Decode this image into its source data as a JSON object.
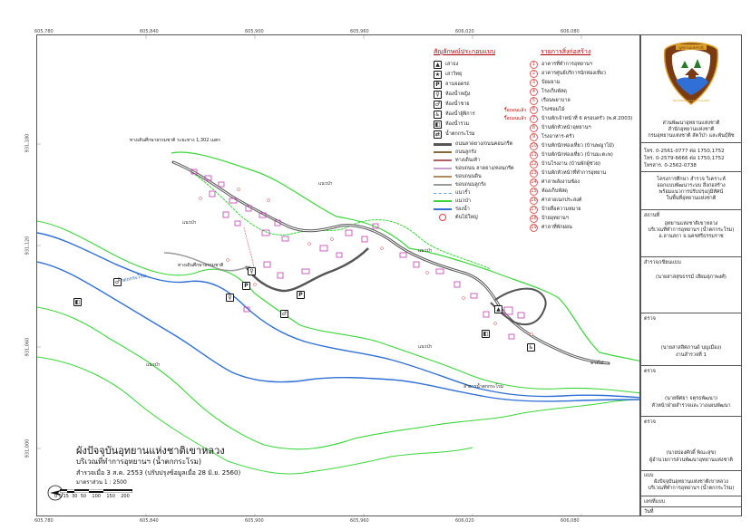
{
  "map": {
    "title": "ผังปัจจุบันอุทยานแห่งชาติเขาหลวง",
    "subtitle": "บริเวณที่ทำการอุทยานฯ (น้ำตกกระโรม)",
    "survey_date": "สำรวจเมื่อ 3 ส.ค. 2553 (ปรับปรุงข้อมูลเมื่อ 28 มิ.ย. 2560)",
    "scale_text": "มาตราส่วน        1 : 2500",
    "scale_ticks": [
      "0",
      "5",
      "15",
      "30",
      "50",
      "100",
      "150",
      "200"
    ],
    "grid_x_labels": [
      "605,780",
      "605,840",
      "605,900",
      "605,960",
      "606,020",
      "606,080",
      "606,140"
    ],
    "grid_y_labels": [
      "931,180",
      "931,120",
      "931,060",
      "931,000",
      "930,940"
    ],
    "labels": {
      "forest_1": "แนวป่า",
      "forest_2": "แนวป่า",
      "forest_3": "แนวป่า",
      "forest_4": "แนวป่า",
      "forest_5": "แนวป่า",
      "river": "น้ำตกกระโรม",
      "road_top": "ทางเดินศึกษาธรรมชาติ ระยะทาง 1,302 เมตร",
      "road_mid": "ทางเดินศึกษาธรรมชาติ",
      "to_village": "ทางไป",
      "stream": "ลำธารน้ำตกกระโรม"
    }
  },
  "legend": {
    "symbols_title": "สัญลักษณ์ประกอบแบบ",
    "buildings_title": "รายการสิ่งก่อสร้าง",
    "symbols": [
      {
        "icon": "▲",
        "label": "เสาธง"
      },
      {
        "icon": "★",
        "label": "เสาวิทยุ"
      },
      {
        "icon": "P",
        "label": "ลานจอดรถ"
      },
      {
        "icon": "♀",
        "label": "ห้องน้ำหญิง"
      },
      {
        "icon": "♂",
        "label": "ห้องน้ำชาย"
      },
      {
        "icon": "♿",
        "label": "ห้องน้ำผู้พิการ"
      },
      {
        "icon": "◧",
        "label": "ห้องน้ำรวม"
      },
      {
        "icon": "⇄",
        "label": "น้ำตกกระโรม"
      }
    ],
    "lines": [
      {
        "color": "#555555",
        "label": "ถนนลาดยาง/ถนนคอนกรีต"
      },
      {
        "color": "#8a6a3a",
        "label": "ถนนลูกรัง"
      },
      {
        "color": "#b06060",
        "label": "ทางเดินเท้า"
      },
      {
        "color": "#c9a0c9",
        "label": "ขอบถนน ลาดยาง/คอนกรีต"
      },
      {
        "color": "#b08a5a",
        "label": "ขอบถนนดิน"
      },
      {
        "color": "#9a9a9a",
        "label": "ขอบถนนลูกรัง"
      },
      {
        "color": "#6aa0e0",
        "label": "แนวรั้ว"
      },
      {
        "color": "#39d639",
        "label": "แนวป่า"
      },
      {
        "color": "#2f6fd6",
        "label": "ร่องน้ำ"
      },
      {
        "color": "#e04040",
        "label": "ต้นไม้ใหญ่"
      }
    ],
    "buildings": [
      {
        "n": "1",
        "label": "อาคารที่ทำการอุทยานฯ"
      },
      {
        "n": "2",
        "label": "อาคารศูนย์บริการนักท่องเที่ยว"
      },
      {
        "n": "3",
        "label": "ป้อมยาม"
      },
      {
        "n": "4",
        "label": "โรงเก็บพัสดุ"
      },
      {
        "n": "5",
        "label": "เรือนพยาบาล"
      },
      {
        "n": "6",
        "label": "โรงซ่อมไม้"
      },
      {
        "n": "7",
        "label": "บ้านพักเจ้าหน้าที่ 6 ครอบครัว (พ.ศ.2003)"
      },
      {
        "n": "8",
        "label": "บ้านพักหัวหน้าอุทยานฯ"
      },
      {
        "n": "9",
        "label": "โรงอาหาร-ครัว"
      },
      {
        "n": "10",
        "label": "บ้านพักนักท่องเที่ยว (บ้านพญาไม้)"
      },
      {
        "n": "11",
        "label": "บ้านพักนักท่องเที่ยว (บ้านมะตะพ)"
      },
      {
        "n": "12",
        "label": "บ้านโรงงาน (บ้านพักผู้ช่วย)"
      },
      {
        "n": "13",
        "label": "บ้านพักหัวหน้าที่ทำการอุทยาน"
      },
      {
        "n": "14",
        "label": "ศาลาพลังงานซ้อง"
      },
      {
        "n": "15",
        "label": "ห้องเก็บพัสดุ"
      },
      {
        "n": "16",
        "label": "ศาลาอเนกประสงค์"
      },
      {
        "n": "17",
        "label": "ป้ายสื่อความหมาย"
      },
      {
        "n": "18",
        "label": "ป้ายอุทยานฯ"
      },
      {
        "n": "19",
        "label": "ศาลาที่พักผ่อน"
      }
    ],
    "demolished_tags": [
      "รื้อถอนแล้ว",
      "รื้อถอนแล้ว"
    ]
  },
  "title_block": {
    "logo_text": "NATIONAL PARK THAILAND",
    "logo_top": "อุทยานแห่งชาติ",
    "org_lines": [
      "ส่วนพัฒนาอุทยานแห่งชาติ",
      "สำนักอุทยานแห่งชาติ",
      "กรมอุทยานแห่งชาติ สัตว์ป่า และพันธุ์พืช"
    ],
    "contacts": [
      "โทร. 0-2561-0777 ต่อ 1750,1752",
      "โทร. 0-2579-6666 ต่อ 1750,1752",
      "โทรสาร. 0-2562-0738"
    ],
    "project_lines": [
      "โครงการศึกษา สำรวจ วิเคราะห์",
      "ออกแบบพัฒนาระบบ สิ่งก่อสร้าง",
      "พร้อมแนวการปรับปรุงภูมิทัศน์",
      "ในพื้นที่อุทยานแห่งชาติ"
    ],
    "location_label": "สถานที่",
    "location_lines": [
      "อุทยานแห่งชาติเขาหลวง",
      "บริเวณที่ทำการอุทยานฯ (น้ำตกกระโรม)",
      "อ.ลานสกา  จ.นครศรีธรรมราช"
    ],
    "surveyor_label": "สำรวจ/เขียนแบบ",
    "surveyor_name": "(นายสาสสุขธรรม์  เสียมสุภาพงศ์)",
    "checked_label": "ตรวจ",
    "checked_name": "(นายสาสสิศภานด์  บุญเมือง)",
    "checked_role": "งานสำรวจที่ 1",
    "approved_label": "ตรวจ",
    "approved_name": "(นายพีศยา  จตุรธพัฒนา)",
    "approved_role": "หัวหน้าฝ่ายสำรวจและวางแผนพัฒนา",
    "agreed_label": "ตรวจ",
    "agreed_name": "(นายปองศักดิ์  พิณะสุข)",
    "agreed_role": "ผู้อำนวยการส่วนพัฒนาอุทยานแห่งชาติ",
    "plan_label": "แบบ",
    "plan_lines": [
      "ผังปัจจุบันอุทยานแห่งชาติเขาหลวง",
      "บริเวณที่ทำการอุทยานฯ (น้ำตกกระโรม)"
    ],
    "sheet_label": "เลขที่แบบ",
    "date_label": "วันที่"
  },
  "colors": {
    "forest": "#39d639",
    "river": "#2f6fd6",
    "road": "#555555",
    "building": "#c23db0",
    "title_accent": "#a00000",
    "logo_brown": "#7a3b12",
    "logo_gold": "#d9a12a"
  }
}
